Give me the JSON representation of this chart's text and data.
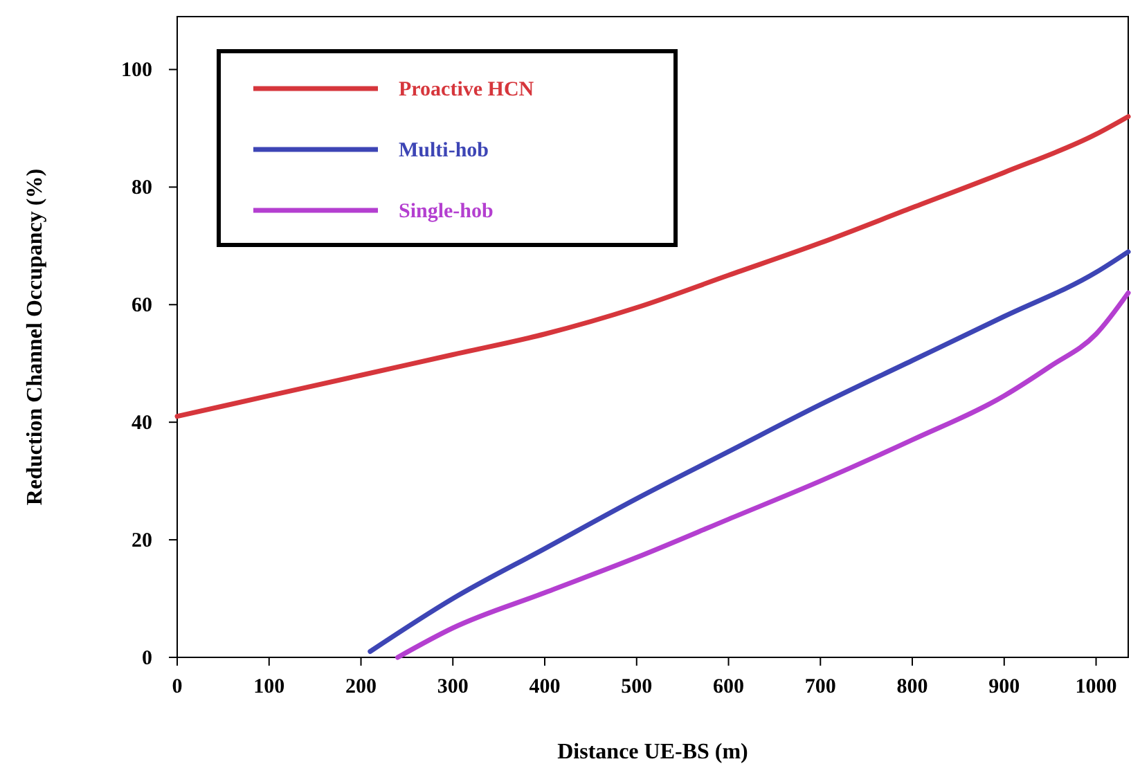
{
  "chart_data": {
    "type": "line",
    "xlabel": "Distance UE-BS (m)",
    "ylabel": "Reduction Channel Occupancy (%)",
    "xlim": [
      0,
      1035
    ],
    "ylim": [
      0,
      109
    ],
    "xticks": [
      0,
      100,
      200,
      300,
      400,
      500,
      600,
      700,
      800,
      900,
      1000
    ],
    "yticks": [
      0,
      20,
      40,
      60,
      80,
      100
    ],
    "grid": false,
    "legend": "top left",
    "marker": "none",
    "line_style": "solid",
    "series": [
      {
        "name": "Proactive HCN",
        "color": "#d6363c",
        "x": [
          0,
          100,
          200,
          300,
          400,
          500,
          600,
          700,
          800,
          900,
          1000,
          1035
        ],
        "values": [
          41,
          44.5,
          48,
          51.5,
          55,
          59.5,
          65,
          70.5,
          76.5,
          82.5,
          89,
          92
        ]
      },
      {
        "name": "Multi-hob",
        "color": "#3d45b5",
        "x": [
          210,
          300,
          400,
          500,
          600,
          700,
          800,
          900,
          1000,
          1035
        ],
        "values": [
          1,
          10,
          18.5,
          27,
          35,
          43,
          50.5,
          58,
          65.5,
          69
        ]
      },
      {
        "name": "Single-hob",
        "color": "#b43fd0",
        "x": [
          240,
          300,
          400,
          500,
          600,
          700,
          800,
          900,
          950,
          1000,
          1035
        ],
        "values": [
          0,
          5,
          11,
          17,
          23.5,
          30,
          37,
          44.5,
          49.5,
          55,
          62
        ]
      }
    ]
  }
}
